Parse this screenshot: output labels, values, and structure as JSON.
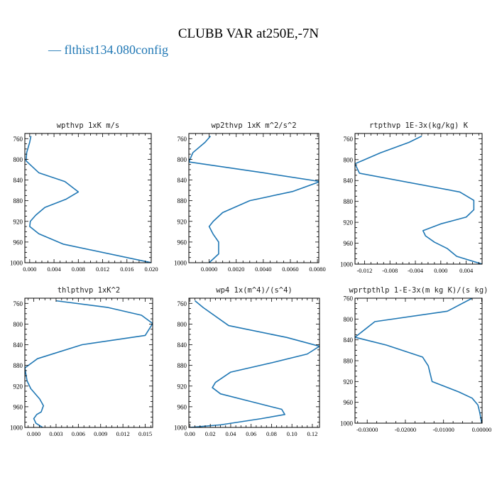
{
  "figure": {
    "title": "CLUBB VAR at250E,-7N",
    "legend": [
      {
        "label": "— flthist134.080config",
        "color": "#1f77b4"
      }
    ],
    "line_color": "#1f77b4"
  },
  "chart_data": [
    {
      "type": "line",
      "title": "wpthvp  1xK m/s",
      "xlim": [
        -0.0008,
        0.02
      ],
      "ylim": [
        1000,
        750
      ],
      "xticks": [
        0.0,
        0.004,
        0.008,
        0.012,
        0.016,
        0.02
      ],
      "xtick_labels": [
        "0.000",
        "0.004",
        "0.008",
        "0.012",
        "0.016",
        "0.020"
      ],
      "yticks": [
        760,
        800,
        840,
        880,
        920,
        960,
        1000
      ],
      "series": [
        {
          "x": [
            0.0002,
            0.0,
            -0.0005,
            -0.0006,
            0.0015,
            0.0058,
            0.008,
            0.006,
            0.0025,
            0.001,
            0.0001,
            0.0,
            0.0015,
            0.0055,
            0.02
          ],
          "y": [
            755,
            767,
            787,
            803,
            826,
            843,
            863,
            877,
            893,
            908,
            920,
            930,
            944,
            964,
            1000
          ]
        }
      ]
    },
    {
      "type": "line",
      "title": "wp2thvp  1xK m^2/s^2",
      "xlim": [
        -0.0015,
        0.0081
      ],
      "ylim": [
        1000,
        750
      ],
      "xticks": [
        0.0,
        0.002,
        0.004,
        0.006,
        0.008
      ],
      "xtick_labels": [
        "0.0000",
        "0.0020",
        "0.0040",
        "0.0060",
        "0.0080"
      ],
      "yticks": [
        760,
        800,
        840,
        880,
        920,
        960,
        1000
      ],
      "series": [
        {
          "x": [
            0.0001,
            -0.0003,
            -0.0012,
            -0.0015,
            0.004,
            0.0082,
            0.0062,
            0.003,
            0.001,
            0.0003,
            0.0,
            0.0003,
            0.0007,
            0.0007,
            0.0
          ],
          "y": [
            755,
            767,
            787,
            805,
            826,
            843,
            862,
            880,
            903,
            920,
            930,
            945,
            960,
            983,
            1000
          ]
        }
      ]
    },
    {
      "type": "line",
      "title": "rtpthvp  1E-3x(kg/kg) K",
      "xlim": [
        -0.0135,
        0.0065
      ],
      "ylim": [
        1000,
        750
      ],
      "xticks": [
        -0.012,
        -0.008,
        -0.004,
        0.0,
        0.004
      ],
      "xtick_labels": [
        "-0.012",
        "-0.008",
        "-0.004",
        "0.000",
        "0.004"
      ],
      "yticks": [
        760,
        800,
        840,
        880,
        920,
        960,
        1000
      ],
      "series": [
        {
          "x": [
            -0.003,
            -0.005,
            -0.0095,
            -0.0135,
            -0.0128,
            0.003,
            0.0052,
            0.0052,
            0.004,
            0.0,
            -0.0028,
            -0.0024,
            -0.001,
            0.001,
            0.0025,
            0.0065
          ],
          "y": [
            755,
            767,
            787,
            808,
            826,
            862,
            878,
            896,
            910,
            923,
            936,
            946,
            958,
            970,
            985,
            1000
          ]
        }
      ]
    },
    {
      "type": "line",
      "title": "thlpthvp  1xK^2",
      "xlim": [
        -0.0012,
        0.016
      ],
      "ylim": [
        1000,
        750
      ],
      "xticks": [
        0.0,
        0.003,
        0.006,
        0.009,
        0.012,
        0.015
      ],
      "xtick_labels": [
        "0.000",
        "0.003",
        "0.006",
        "0.009",
        "0.012",
        "0.015"
      ],
      "yticks": [
        760,
        800,
        840,
        880,
        920,
        960,
        1000
      ],
      "series": [
        {
          "x": [
            0.003,
            0.01,
            0.0145,
            0.016,
            0.015,
            0.0065,
            0.0005,
            -0.0012,
            -0.0009,
            -0.0004,
            0.0008,
            0.0013,
            0.001,
            0.0004,
            0.0,
            0.0003,
            0.0012
          ],
          "y": [
            755,
            768,
            783,
            799,
            822,
            840,
            867,
            885,
            910,
            925,
            945,
            958,
            970,
            975,
            983,
            992,
            1000
          ]
        }
      ]
    },
    {
      "type": "line",
      "title": "wp4  1x(m^4)/(s^4)",
      "xlim": [
        -0.001,
        0.127
      ],
      "ylim": [
        1000,
        750
      ],
      "xticks": [
        0.0,
        0.02,
        0.04,
        0.06,
        0.08,
        0.1,
        0.12
      ],
      "xtick_labels": [
        "0.00",
        "0.02",
        "0.04",
        "0.06",
        "0.08",
        "0.10",
        "0.12"
      ],
      "yticks": [
        760,
        800,
        840,
        880,
        920,
        960,
        1000
      ],
      "series": [
        {
          "x": [
            0.005,
            0.013,
            0.038,
            0.095,
            0.127,
            0.115,
            0.08,
            0.04,
            0.025,
            0.022,
            0.03,
            0.06,
            0.09,
            0.093,
            0.07,
            0.03,
            0.0
          ],
          "y": [
            755,
            768,
            803,
            826,
            843,
            858,
            875,
            893,
            913,
            923,
            935,
            950,
            965,
            975,
            983,
            995,
            1000
          ]
        }
      ]
    },
    {
      "type": "line",
      "title": "wprtpthlp  1-E-3x(m kg K)/(s kg)",
      "xlim": [
        -0.0332,
        0.0001
      ],
      "ylim": [
        1000,
        760
      ],
      "xticks": [
        -0.03,
        -0.02,
        -0.01,
        0.0
      ],
      "xtick_labels": [
        "-0.03000",
        "-0.02000",
        "-0.01000",
        "0.00000"
      ],
      "yticks": [
        760,
        800,
        840,
        880,
        920,
        960,
        1000
      ],
      "series": [
        {
          "x": [
            -0.0025,
            -0.009,
            -0.028,
            -0.0332,
            -0.025,
            -0.0155,
            -0.014,
            -0.0135,
            -0.013,
            -0.006,
            -0.0025,
            -0.001,
            -0.0005,
            0.0
          ],
          "y": [
            760,
            785,
            805,
            835,
            850,
            873,
            890,
            905,
            920,
            940,
            952,
            965,
            980,
            1000
          ]
        }
      ]
    }
  ]
}
